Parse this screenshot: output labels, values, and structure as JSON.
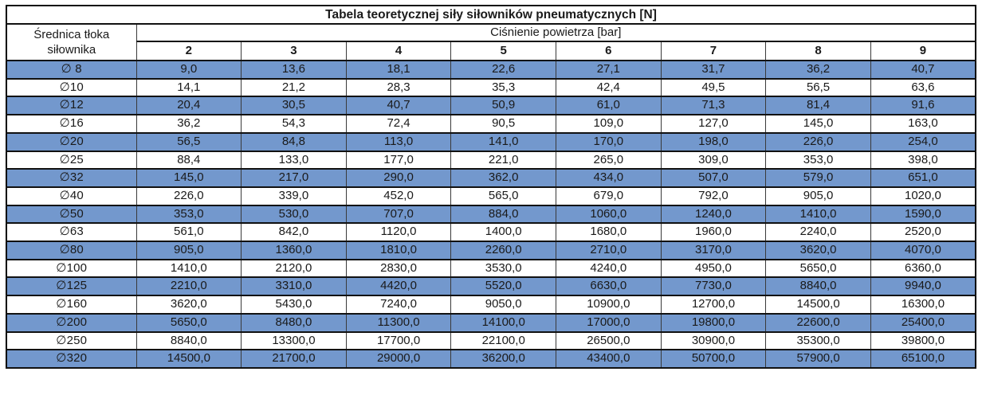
{
  "table": {
    "title": "Tabela teoretycznej siły siłowników pneumatycznych [N]",
    "row_header_line1": "Średnica tłoka",
    "row_header_line2": "siłownika",
    "group_header": "Ciśnienie powietrza [bar]",
    "pressure_columns": [
      "2",
      "3",
      "4",
      "5",
      "6",
      "7",
      "8",
      "9"
    ],
    "rows": [
      {
        "diameter": "∅ 8",
        "highlight": true,
        "values": [
          "9,0",
          "13,6",
          "18,1",
          "22,6",
          "27,1",
          "31,7",
          "36,2",
          "40,7"
        ]
      },
      {
        "diameter": "∅10",
        "highlight": false,
        "values": [
          "14,1",
          "21,2",
          "28,3",
          "35,3",
          "42,4",
          "49,5",
          "56,5",
          "63,6"
        ]
      },
      {
        "diameter": "∅12",
        "highlight": true,
        "values": [
          "20,4",
          "30,5",
          "40,7",
          "50,9",
          "61,0",
          "71,3",
          "81,4",
          "91,6"
        ]
      },
      {
        "diameter": "∅16",
        "highlight": false,
        "values": [
          "36,2",
          "54,3",
          "72,4",
          "90,5",
          "109,0",
          "127,0",
          "145,0",
          "163,0"
        ]
      },
      {
        "diameter": "∅20",
        "highlight": true,
        "values": [
          "56,5",
          "84,8",
          "113,0",
          "141,0",
          "170,0",
          "198,0",
          "226,0",
          "254,0"
        ]
      },
      {
        "diameter": "∅25",
        "highlight": false,
        "values": [
          "88,4",
          "133,0",
          "177,0",
          "221,0",
          "265,0",
          "309,0",
          "353,0",
          "398,0"
        ]
      },
      {
        "diameter": "∅32",
        "highlight": true,
        "values": [
          "145,0",
          "217,0",
          "290,0",
          "362,0",
          "434,0",
          "507,0",
          "579,0",
          "651,0"
        ]
      },
      {
        "diameter": "∅40",
        "highlight": false,
        "values": [
          "226,0",
          "339,0",
          "452,0",
          "565,0",
          "679,0",
          "792,0",
          "905,0",
          "1020,0"
        ]
      },
      {
        "diameter": "∅50",
        "highlight": true,
        "values": [
          "353,0",
          "530,0",
          "707,0",
          "884,0",
          "1060,0",
          "1240,0",
          "1410,0",
          "1590,0"
        ]
      },
      {
        "diameter": "∅63",
        "highlight": false,
        "values": [
          "561,0",
          "842,0",
          "1120,0",
          "1400,0",
          "1680,0",
          "1960,0",
          "2240,0",
          "2520,0"
        ]
      },
      {
        "diameter": "∅80",
        "highlight": true,
        "values": [
          "905,0",
          "1360,0",
          "1810,0",
          "2260,0",
          "2710,0",
          "3170,0",
          "3620,0",
          "4070,0"
        ]
      },
      {
        "diameter": "∅100",
        "highlight": false,
        "values": [
          "1410,0",
          "2120,0",
          "2830,0",
          "3530,0",
          "4240,0",
          "4950,0",
          "5650,0",
          "6360,0"
        ]
      },
      {
        "diameter": "∅125",
        "highlight": true,
        "values": [
          "2210,0",
          "3310,0",
          "4420,0",
          "5520,0",
          "6630,0",
          "7730,0",
          "8840,0",
          "9940,0"
        ]
      },
      {
        "diameter": "∅160",
        "highlight": false,
        "values": [
          "3620,0",
          "5430,0",
          "7240,0",
          "9050,0",
          "10900,0",
          "12700,0",
          "14500,0",
          "16300,0"
        ]
      },
      {
        "diameter": "∅200",
        "highlight": true,
        "values": [
          "5650,0",
          "8480,0",
          "11300,0",
          "14100,0",
          "17000,0",
          "19800,0",
          "22600,0",
          "25400,0"
        ]
      },
      {
        "diameter": "∅250",
        "highlight": false,
        "values": [
          "8840,0",
          "13300,0",
          "17700,0",
          "22100,0",
          "26500,0",
          "30900,0",
          "35300,0",
          "39800,0"
        ]
      },
      {
        "diameter": "∅320",
        "highlight": true,
        "values": [
          "14500,0",
          "21700,0",
          "29000,0",
          "36200,0",
          "43400,0",
          "50700,0",
          "57900,0",
          "65100,0"
        ]
      }
    ],
    "colors": {
      "highlight_row": "#7398CD",
      "border": "#000000",
      "text": "#1a1a1a",
      "background": "#ffffff"
    }
  },
  "chart_data": {
    "type": "table",
    "title": "Tabela teoretycznej siły siłowników pneumatycznych [N]",
    "row_label": "Średnica tłoka siłownika",
    "column_group_label": "Ciśnienie powietrza [bar]",
    "columns_bar": [
      2,
      3,
      4,
      5,
      6,
      7,
      8,
      9
    ],
    "rows_diameter": [
      "8",
      "10",
      "12",
      "16",
      "20",
      "25",
      "32",
      "40",
      "50",
      "63",
      "80",
      "100",
      "125",
      "160",
      "200",
      "250",
      "320"
    ],
    "values_N": [
      [
        9.0,
        13.6,
        18.1,
        22.6,
        27.1,
        31.7,
        36.2,
        40.7
      ],
      [
        14.1,
        21.2,
        28.3,
        35.3,
        42.4,
        49.5,
        56.5,
        63.6
      ],
      [
        20.4,
        30.5,
        40.7,
        50.9,
        61.0,
        71.3,
        81.4,
        91.6
      ],
      [
        36.2,
        54.3,
        72.4,
        90.5,
        109.0,
        127.0,
        145.0,
        163.0
      ],
      [
        56.5,
        84.8,
        113.0,
        141.0,
        170.0,
        198.0,
        226.0,
        254.0
      ],
      [
        88.4,
        133.0,
        177.0,
        221.0,
        265.0,
        309.0,
        353.0,
        398.0
      ],
      [
        145.0,
        217.0,
        290.0,
        362.0,
        434.0,
        507.0,
        579.0,
        651.0
      ],
      [
        226.0,
        339.0,
        452.0,
        565.0,
        679.0,
        792.0,
        905.0,
        1020.0
      ],
      [
        353.0,
        530.0,
        707.0,
        884.0,
        1060.0,
        1240.0,
        1410.0,
        1590.0
      ],
      [
        561.0,
        842.0,
        1120.0,
        1400.0,
        1680.0,
        1960.0,
        2240.0,
        2520.0
      ],
      [
        905.0,
        1360.0,
        1810.0,
        2260.0,
        2710.0,
        3170.0,
        3620.0,
        4070.0
      ],
      [
        1410.0,
        2120.0,
        2830.0,
        3530.0,
        4240.0,
        4950.0,
        5650.0,
        6360.0
      ],
      [
        2210.0,
        3310.0,
        4420.0,
        5520.0,
        6630.0,
        7730.0,
        8840.0,
        9940.0
      ],
      [
        3620.0,
        5430.0,
        7240.0,
        9050.0,
        10900.0,
        12700.0,
        14500.0,
        16300.0
      ],
      [
        5650.0,
        8480.0,
        11300.0,
        14100.0,
        17000.0,
        19800.0,
        22600.0,
        25400.0
      ],
      [
        8840.0,
        13300.0,
        17700.0,
        22100.0,
        26500.0,
        30900.0,
        35300.0,
        39800.0
      ],
      [
        14500.0,
        21700.0,
        29000.0,
        36200.0,
        43400.0,
        50700.0,
        57900.0,
        65100.0
      ]
    ]
  }
}
